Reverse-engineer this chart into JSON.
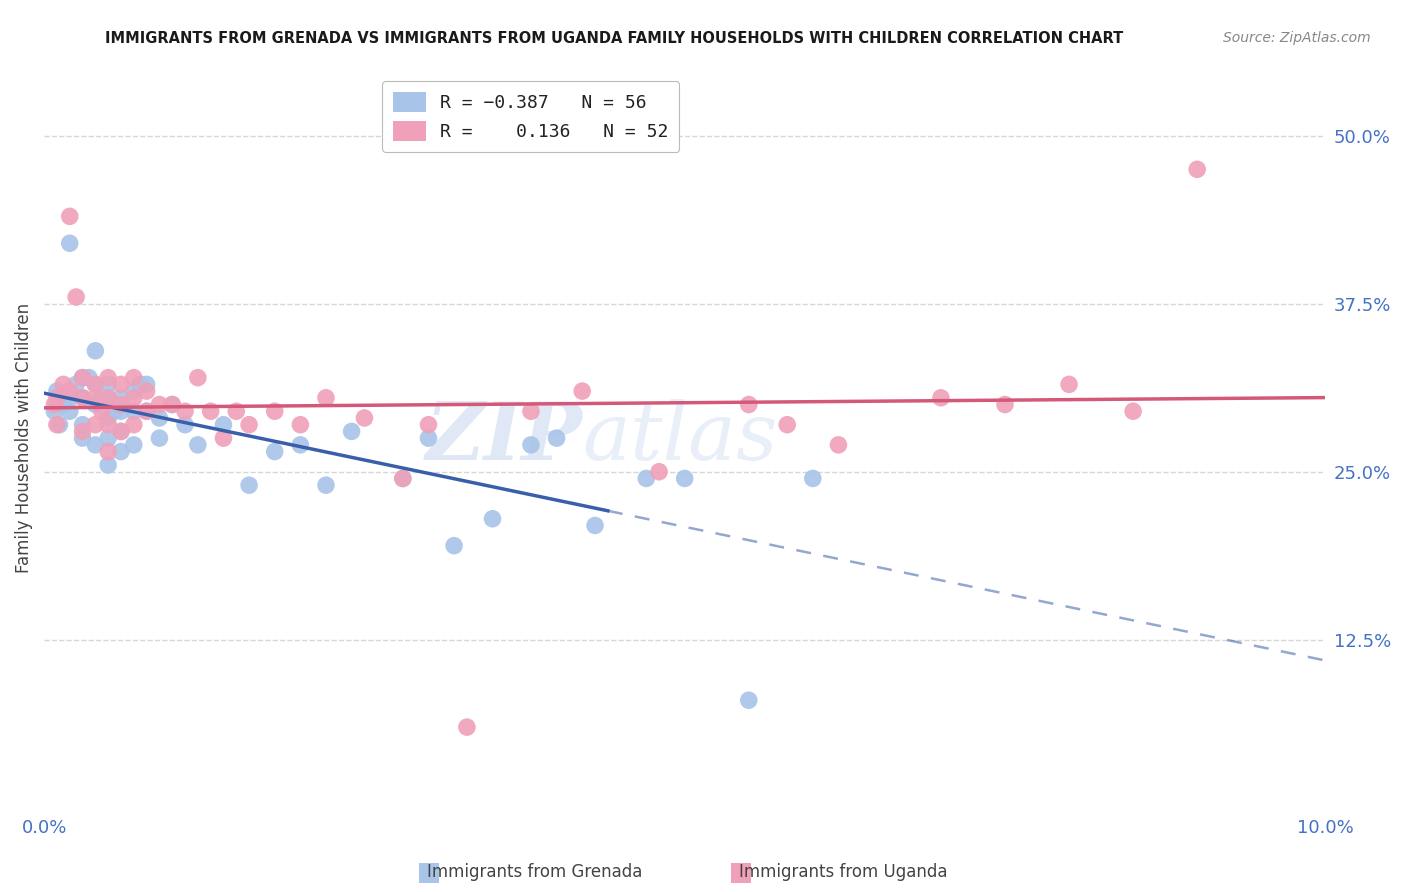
{
  "title": "IMMIGRANTS FROM GRENADA VS IMMIGRANTS FROM UGANDA FAMILY HOUSEHOLDS WITH CHILDREN CORRELATION CHART",
  "source": "Source: ZipAtlas.com",
  "ylabel": "Family Households with Children",
  "xlim": [
    0.0,
    0.1
  ],
  "ylim": [
    0.0,
    0.55
  ],
  "xtick_positions": [
    0.0,
    0.02,
    0.04,
    0.06,
    0.08,
    0.1
  ],
  "xticklabels": [
    "0.0%",
    "",
    "",
    "",
    "",
    "10.0%"
  ],
  "ytick_right": [
    0.0,
    0.125,
    0.25,
    0.375,
    0.5
  ],
  "ytick_right_labels": [
    "",
    "12.5%",
    "25.0%",
    "37.5%",
    "50.0%"
  ],
  "watermark_zip": "ZIP",
  "watermark_atlas": "atlas",
  "grenada_color": "#a8c4e8",
  "uganda_color": "#f0a0b8",
  "grenada_line_color": "#3a5faa",
  "uganda_line_color": "#d45878",
  "background_color": "#ffffff",
  "grid_color": "#cccccc",
  "axis_color": "#4472c4",
  "title_color": "#1a1a1a",
  "ylabel_color": "#444444",
  "legend_box_color": "#dddddd",
  "grenada_x": [
    0.0008,
    0.001,
    0.0012,
    0.0015,
    0.002,
    0.002,
    0.002,
    0.0025,
    0.003,
    0.003,
    0.003,
    0.003,
    0.0035,
    0.004,
    0.004,
    0.004,
    0.004,
    0.0045,
    0.005,
    0.005,
    0.005,
    0.005,
    0.005,
    0.0055,
    0.006,
    0.006,
    0.006,
    0.006,
    0.007,
    0.007,
    0.007,
    0.0075,
    0.008,
    0.008,
    0.009,
    0.009,
    0.01,
    0.011,
    0.012,
    0.014,
    0.016,
    0.018,
    0.02,
    0.022,
    0.024,
    0.028,
    0.03,
    0.032,
    0.035,
    0.038,
    0.04,
    0.043,
    0.047,
    0.05,
    0.055,
    0.06
  ],
  "grenada_y": [
    0.295,
    0.31,
    0.285,
    0.3,
    0.42,
    0.305,
    0.295,
    0.315,
    0.32,
    0.305,
    0.285,
    0.275,
    0.32,
    0.34,
    0.315,
    0.3,
    0.27,
    0.305,
    0.315,
    0.305,
    0.29,
    0.275,
    0.255,
    0.295,
    0.305,
    0.295,
    0.28,
    0.265,
    0.31,
    0.295,
    0.27,
    0.315,
    0.315,
    0.295,
    0.29,
    0.275,
    0.3,
    0.285,
    0.27,
    0.285,
    0.24,
    0.265,
    0.27,
    0.24,
    0.28,
    0.245,
    0.275,
    0.195,
    0.215,
    0.27,
    0.275,
    0.21,
    0.245,
    0.245,
    0.08,
    0.245
  ],
  "uganda_x": [
    0.0008,
    0.001,
    0.001,
    0.0015,
    0.002,
    0.002,
    0.0025,
    0.003,
    0.003,
    0.003,
    0.004,
    0.004,
    0.004,
    0.0045,
    0.005,
    0.005,
    0.005,
    0.005,
    0.006,
    0.006,
    0.006,
    0.007,
    0.007,
    0.007,
    0.008,
    0.008,
    0.009,
    0.01,
    0.011,
    0.012,
    0.013,
    0.014,
    0.015,
    0.016,
    0.018,
    0.02,
    0.022,
    0.025,
    0.028,
    0.03,
    0.033,
    0.038,
    0.042,
    0.048,
    0.055,
    0.058,
    0.062,
    0.07,
    0.075,
    0.08,
    0.085,
    0.09
  ],
  "uganda_y": [
    0.3,
    0.305,
    0.285,
    0.315,
    0.44,
    0.31,
    0.38,
    0.32,
    0.305,
    0.28,
    0.315,
    0.305,
    0.285,
    0.295,
    0.32,
    0.305,
    0.285,
    0.265,
    0.315,
    0.3,
    0.28,
    0.32,
    0.305,
    0.285,
    0.31,
    0.295,
    0.3,
    0.3,
    0.295,
    0.32,
    0.295,
    0.275,
    0.295,
    0.285,
    0.295,
    0.285,
    0.305,
    0.29,
    0.245,
    0.285,
    0.06,
    0.295,
    0.31,
    0.25,
    0.3,
    0.285,
    0.27,
    0.305,
    0.3,
    0.315,
    0.295,
    0.475
  ]
}
